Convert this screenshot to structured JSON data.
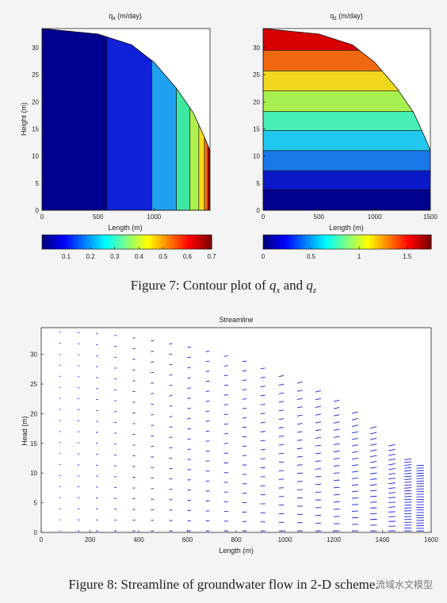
{
  "figure7": {
    "caption_prefix": "Figure 7: Contour plot of ",
    "caption_qx": "q",
    "caption_qx_sub": "x",
    "caption_and": " and ",
    "caption_qz": "q",
    "caption_qz_sub": "z"
  },
  "figure8": {
    "caption": "Figure 8: Streamline of groundwater flow in 2-D scheme."
  },
  "watermark": "流域水文模型",
  "chart_data": [
    {
      "type": "heatmap",
      "title": "q",
      "title_sub": "x",
      "title_unit": " (m/day)",
      "xlabel": "Length (m)",
      "ylabel": "Height (m)",
      "xlim": [
        0,
        1500
      ],
      "ylim": [
        0,
        33.5
      ],
      "xticks": [
        0,
        500,
        1000
      ],
      "yticks": [
        0,
        5,
        10,
        15,
        20,
        25,
        30
      ],
      "domain_top_x": [
        0,
        500,
        800,
        1000,
        1200,
        1350,
        1450,
        1500
      ],
      "domain_top_y": [
        33.5,
        32.5,
        30.5,
        27.3,
        22.5,
        18.0,
        13.5,
        11.0
      ],
      "bands": [
        {
          "x0": 0,
          "x1": 580,
          "color": "#00008f"
        },
        {
          "x0": 580,
          "x1": 980,
          "color": "#0f22d8"
        },
        {
          "x0": 980,
          "x1": 1200,
          "color": "#20a0f0"
        },
        {
          "x0": 1200,
          "x1": 1320,
          "color": "#3ee8a0"
        },
        {
          "x0": 1320,
          "x1": 1400,
          "color": "#aef050"
        },
        {
          "x0": 1400,
          "x1": 1450,
          "color": "#f8d820"
        },
        {
          "x0": 1450,
          "x1": 1480,
          "color": "#f07010"
        },
        {
          "x0": 1480,
          "x1": 1500,
          "color": "#b00000"
        }
      ],
      "colorbar_ticks": [
        "0.1",
        "0.2",
        "0.3",
        "0.4",
        "0.5",
        "0.6",
        "0.7"
      ],
      "colorbar_range": [
        0.0,
        0.7
      ]
    },
    {
      "type": "heatmap",
      "title": "q",
      "title_sub": "z",
      "title_unit": " (m/day)",
      "xlabel": "Length (m)",
      "ylabel": "",
      "xlim": [
        0,
        1500
      ],
      "ylim": [
        0,
        33.5
      ],
      "xticks": [
        0,
        500,
        1000,
        1500
      ],
      "yticks": [
        0,
        5,
        10,
        15,
        20,
        25,
        30
      ],
      "domain_top_x": [
        0,
        500,
        800,
        1000,
        1200,
        1350,
        1450,
        1500
      ],
      "domain_top_y": [
        33.5,
        32.5,
        30.5,
        27.3,
        22.5,
        18.0,
        13.5,
        11.0
      ],
      "bands": [
        {
          "y0": 0,
          "y1": 3.8,
          "color": "#00008f"
        },
        {
          "y0": 3.8,
          "y1": 7.3,
          "color": "#0a18c8"
        },
        {
          "y0": 7.3,
          "y1": 11.0,
          "color": "#1878e8"
        },
        {
          "y0": 11.0,
          "y1": 14.7,
          "color": "#20c8f0"
        },
        {
          "y0": 14.7,
          "y1": 18.2,
          "color": "#48f0b8"
        },
        {
          "y0": 18.2,
          "y1": 22.0,
          "color": "#a8f050"
        },
        {
          "y0": 22.0,
          "y1": 25.7,
          "color": "#f0d820"
        },
        {
          "y0": 25.7,
          "y1": 29.5,
          "color": "#f06810"
        },
        {
          "y0": 29.5,
          "y1": 33.5,
          "color": "#d80000"
        }
      ],
      "colorbar_ticks": [
        "0",
        "0.5",
        "1",
        "1.5"
      ],
      "colorbar_range": [
        0.0,
        1.75
      ]
    },
    {
      "type": "quiver",
      "title": "Streamline",
      "xlabel": "Length (m)",
      "ylabel": "Head (m)",
      "xlim": [
        0,
        1600
      ],
      "ylim": [
        0,
        34.5
      ],
      "xticks": [
        0,
        200,
        400,
        600,
        800,
        1000,
        1200,
        1400,
        1600
      ],
      "yticks": [
        0,
        5,
        10,
        15,
        20,
        25,
        30
      ],
      "columns": [
        {
          "x": 75,
          "top": 33.5,
          "ang": 0.0
        },
        {
          "x": 150,
          "top": 33.4,
          "ang": 0.05
        },
        {
          "x": 225,
          "top": 33.2,
          "ang": 0.08
        },
        {
          "x": 300,
          "top": 32.9,
          "ang": 0.1
        },
        {
          "x": 375,
          "top": 32.5,
          "ang": 0.12
        },
        {
          "x": 450,
          "top": 32.0,
          "ang": 0.13
        },
        {
          "x": 525,
          "top": 31.5,
          "ang": 0.15
        },
        {
          "x": 600,
          "top": 30.9,
          "ang": 0.16
        },
        {
          "x": 675,
          "top": 30.2,
          "ang": 0.17
        },
        {
          "x": 750,
          "top": 29.4,
          "ang": 0.18
        },
        {
          "x": 825,
          "top": 28.5,
          "ang": 0.19
        },
        {
          "x": 900,
          "top": 27.3,
          "ang": 0.2
        },
        {
          "x": 975,
          "top": 26.0,
          "ang": 0.21
        },
        {
          "x": 1050,
          "top": 24.9,
          "ang": 0.22
        },
        {
          "x": 1125,
          "top": 23.4,
          "ang": 0.23
        },
        {
          "x": 1200,
          "top": 21.8,
          "ang": 0.24
        },
        {
          "x": 1275,
          "top": 19.8,
          "ang": 0.25
        },
        {
          "x": 1350,
          "top": 17.3,
          "ang": 0.25
        },
        {
          "x": 1425,
          "top": 14.3,
          "ang": 0.22
        },
        {
          "x": 1490,
          "top": 12.0,
          "ang": 0.12
        },
        {
          "x": 1540,
          "top": 11.0,
          "ang": 0.05
        }
      ]
    }
  ]
}
